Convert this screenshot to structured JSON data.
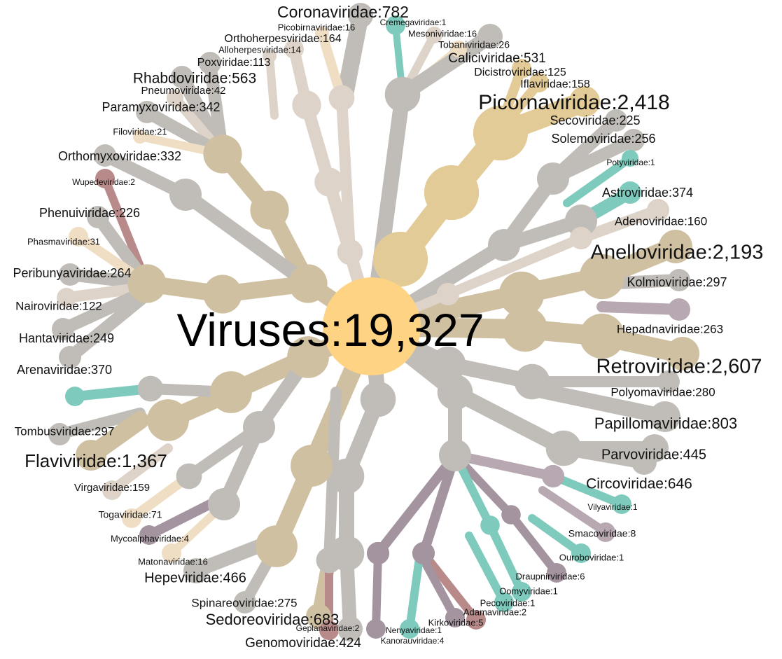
{
  "root": {
    "label": "Viruses:19,327",
    "color": "#ffd384"
  },
  "palette": {
    "gray": "#c0bdb8",
    "gold": "#e3cb98",
    "tan": "#cfc0a2",
    "beige": "#ddd3c8",
    "peach": "#f0dec4",
    "teal": "#7ecbbd",
    "rose": "#b88a8a",
    "mauve": "#a394a0",
    "lilac": "#b7a8b2"
  },
  "families": [
    {
      "label": "Coronaviridae:782",
      "color": "gray"
    },
    {
      "label": "Cremegaviridae:1",
      "color": "teal"
    },
    {
      "label": "Picobirnaviridae:16",
      "color": "peach"
    },
    {
      "label": "Mesoniviridae:16",
      "color": "beige"
    },
    {
      "label": "Orthoherpesviridae:164",
      "color": "beige"
    },
    {
      "label": "Tobaniviridae:26",
      "color": "peach"
    },
    {
      "label": "Alloherpesviridae:14",
      "color": "beige"
    },
    {
      "label": "Caliciviridae:531",
      "color": "gray"
    },
    {
      "label": "Poxviridae:113",
      "color": "gray"
    },
    {
      "label": "Dicistroviridae:125",
      "color": "gold"
    },
    {
      "label": "Iflaviridae:158",
      "color": "gold"
    },
    {
      "label": "Rhabdoviridae:563",
      "color": "gray"
    },
    {
      "label": "Pneumoviridae:42",
      "color": "beige"
    },
    {
      "label": "Picornaviridae:2,418",
      "color": "gold"
    },
    {
      "label": "Paramyxoviridae:342",
      "color": "gray"
    },
    {
      "label": "Secoviridae:225",
      "color": "gray"
    },
    {
      "label": "Filoviridae:21",
      "color": "peach"
    },
    {
      "label": "Solemoviridae:256",
      "color": "gray"
    },
    {
      "label": "Orthomyxoviridae:332",
      "color": "gray"
    },
    {
      "label": "Potyviridae:1",
      "color": "teal"
    },
    {
      "label": "Wupedeviridae:2",
      "color": "rose"
    },
    {
      "label": "Astroviridae:374",
      "color": "teal"
    },
    {
      "label": "Phenuiviridae:226",
      "color": "gray"
    },
    {
      "label": "Adenoviridae:160",
      "color": "beige"
    },
    {
      "label": "Phasmaviridae:31",
      "color": "peach"
    },
    {
      "label": "Anelloviridae:2,193",
      "color": "tan"
    },
    {
      "label": "Peribunyaviridae:264",
      "color": "gray"
    },
    {
      "label": "Kolmioviridae:297",
      "color": "gray"
    },
    {
      "label": "Nairoviridae:122",
      "color": "beige"
    },
    {
      "label": "Hepadnaviridae:263",
      "color": "lilac"
    },
    {
      "label": "Hantaviridae:249",
      "color": "gray"
    },
    {
      "label": "Retroviridae:2,607",
      "color": "tan"
    },
    {
      "label": "Arenaviridae:370",
      "color": "gray"
    },
    {
      "label": "Polyomaviridae:280",
      "color": "gray"
    },
    {
      "label": "Papillomaviridae:803",
      "color": "gray"
    },
    {
      "label": "Tombusviridae:297",
      "color": "gray"
    },
    {
      "label": "Parvoviridae:445",
      "color": "gray"
    },
    {
      "label": "Flaviviridae:1,367",
      "color": "tan"
    },
    {
      "label": "Circoviridae:646",
      "color": "gray"
    },
    {
      "label": "Virgaviridae:159",
      "color": "beige"
    },
    {
      "label": "Vilyaviridae:1",
      "color": "teal"
    },
    {
      "label": "Togaviridae:71",
      "color": "peach"
    },
    {
      "label": "Smacoviridae:8",
      "color": "lilac"
    },
    {
      "label": "Mycoalphaviridae:4",
      "color": "mauve"
    },
    {
      "label": "Ouroboviridae:1",
      "color": "teal"
    },
    {
      "label": "Matonaviridae:16",
      "color": "peach"
    },
    {
      "label": "Draupnirviridae:6",
      "color": "mauve"
    },
    {
      "label": "Hepeviridae:466",
      "color": "gray"
    },
    {
      "label": "Oomyviridae:1",
      "color": "teal"
    },
    {
      "label": "Pecoviridae:1",
      "color": "teal"
    },
    {
      "label": "Spinareoviridae:275",
      "color": "gray"
    },
    {
      "label": "Adamaviridae:2",
      "color": "rose"
    },
    {
      "label": "Sedoreoviridae:683",
      "color": "tan"
    },
    {
      "label": "Kirkoviridae:5",
      "color": "mauve"
    },
    {
      "label": "Geplanaviridae:2",
      "color": "rose"
    },
    {
      "label": "Nenyaviridae:1",
      "color": "teal"
    },
    {
      "label": "Genomoviridae:424",
      "color": "gray"
    },
    {
      "label": "Kanorauviridae:4",
      "color": "mauve"
    },
    {
      "label": "",
      "color": "teal"
    }
  ]
}
